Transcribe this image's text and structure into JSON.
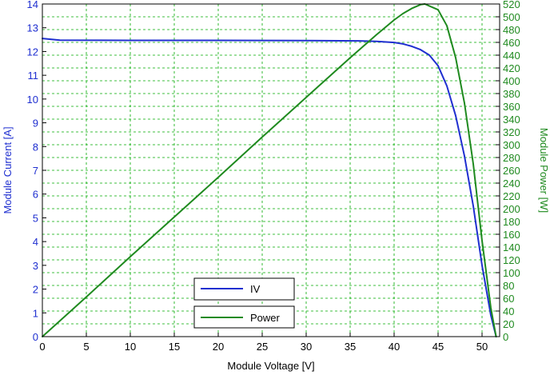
{
  "chart_data": {
    "type": "line",
    "title": "",
    "xlabel": "Module Voltage [V]",
    "ylabel_left": "Module Current [A]",
    "ylabel_right": "Module Power [W]",
    "xlim": [
      0,
      52
    ],
    "ylim_left": [
      0,
      14
    ],
    "ylim_right": [
      0,
      520
    ],
    "x_ticks": [
      0,
      5,
      10,
      15,
      20,
      25,
      30,
      35,
      40,
      45,
      50
    ],
    "y_left_ticks": [
      0,
      1,
      2,
      3,
      4,
      5,
      6,
      7,
      8,
      9,
      10,
      11,
      12,
      13,
      14
    ],
    "y_right_ticks": [
      0,
      20,
      40,
      60,
      80,
      100,
      120,
      140,
      160,
      180,
      200,
      220,
      240,
      260,
      280,
      300,
      320,
      340,
      360,
      380,
      400,
      420,
      440,
      460,
      480,
      500,
      520
    ],
    "grid": true,
    "legend_position": "bottom-left",
    "colors": {
      "iv": "#1f2fd0",
      "power": "#1f8a1f",
      "grid": "#00aa00",
      "axis": "#000000"
    },
    "series": [
      {
        "name": "IV",
        "axis": "left",
        "x": [
          0,
          2,
          10,
          20,
          30,
          36,
          38,
          40,
          41,
          42,
          43,
          44,
          45,
          46,
          47,
          48,
          49,
          50,
          51,
          51.6
        ],
        "y": [
          12.55,
          12.48,
          12.47,
          12.47,
          12.46,
          12.45,
          12.43,
          12.38,
          12.32,
          12.22,
          12.08,
          11.85,
          11.4,
          10.55,
          9.3,
          7.6,
          5.5,
          3.0,
          0.9,
          0.0
        ]
      },
      {
        "name": "Power",
        "axis": "right",
        "x": [
          0,
          5,
          10,
          15,
          20,
          25,
          30,
          35,
          38,
          40,
          41,
          42,
          43,
          43.5,
          44,
          45,
          46,
          47,
          48,
          49,
          50,
          51,
          51.6
        ],
        "y": [
          0,
          62,
          125,
          187,
          249,
          312,
          374,
          436,
          472,
          495,
          505,
          513,
          519,
          520,
          517,
          511,
          486,
          436,
          365,
          270,
          150,
          45,
          0
        ]
      }
    ]
  }
}
